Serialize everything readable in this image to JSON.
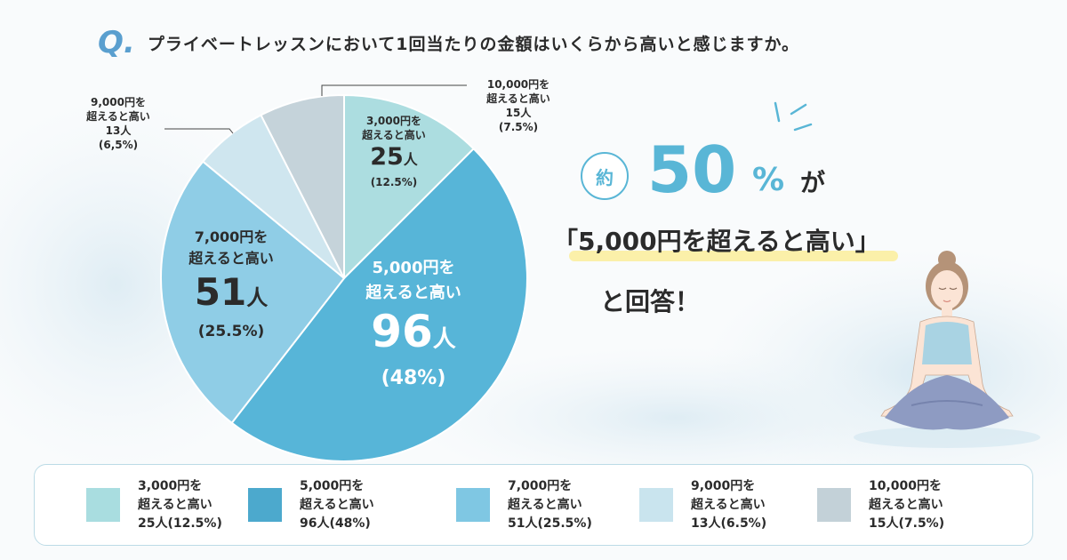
{
  "question": {
    "mark": "Q.",
    "text": "プライベートレッスンにおいて1回当たりの金額はいくらから高いと感じますか。"
  },
  "colors": {
    "accent": "#59b6d6",
    "slice_3000": "#acdde0",
    "slice_5000": "#57b5d8",
    "slice_7000": "#8fcde6",
    "slice_9000": "#cfe6ef",
    "slice_10000": "#c5d3da"
  },
  "chart_data": {
    "type": "pie",
    "slices": [
      {
        "key": "3000",
        "label": "3,000円を超えると高い",
        "line1": "3,000円を",
        "line2": "超えると高い",
        "count": 25,
        "count_label": "25",
        "unit": "人",
        "pct_label": "(12.5%)",
        "percent": 12.5,
        "color": "#acdde0"
      },
      {
        "key": "5000",
        "label": "5,000円を超えると高い",
        "line1": "5,000円を",
        "line2": "超えると高い",
        "count": 96,
        "count_label": "96",
        "unit": "人",
        "pct_label": "(48%)",
        "percent": 48,
        "color": "#57b5d8"
      },
      {
        "key": "7000",
        "label": "7,000円を超えると高い",
        "line1": "7,000円を",
        "line2": "超えると高い",
        "count": 51,
        "count_label": "51",
        "unit": "人",
        "pct_label": "(25.5%)",
        "percent": 25.5,
        "color": "#8fcde6"
      },
      {
        "key": "9000",
        "label": "9,000円を超えると高い",
        "line1": "9,000円を",
        "line2": "超えると高い",
        "count": 13,
        "count_label": "13人",
        "pct_label": "(6,5%)",
        "percent": 6.5,
        "color": "#cfe6ef"
      },
      {
        "key": "10000",
        "label": "10,000円を超えると高い",
        "line1": "10,000円を",
        "line2": "超えると高い",
        "count": 15,
        "count_label": "15人",
        "pct_label": "(7.5%)",
        "percent": 7.5,
        "color": "#c5d3da"
      }
    ]
  },
  "headline": {
    "badge": "約",
    "pct_value": "50",
    "pct_unit": "%",
    "ga": "が",
    "quote": "「5,000円を超えると高い」",
    "answer": "と回答！"
  },
  "legend": [
    {
      "line1": "3,000円を",
      "line2": "超えると高い",
      "line3": "25人(12.5%)",
      "color": "#a9dde0"
    },
    {
      "line1": "5,000円を",
      "line2": "超えると高い",
      "line3": "96人(48%)",
      "color": "#4ca9cd"
    },
    {
      "line1": "7,000円を",
      "line2": "超えると高い",
      "line3": "51人(25.5%)",
      "color": "#7fc7e3"
    },
    {
      "line1": "9,000円を",
      "line2": "超えると高い",
      "line3": "13人(6.5%)",
      "color": "#c9e4ee"
    },
    {
      "line1": "10,000円を",
      "line2": "超えると高い",
      "line3": "15人(7.5%)",
      "color": "#c3d1d8"
    }
  ]
}
